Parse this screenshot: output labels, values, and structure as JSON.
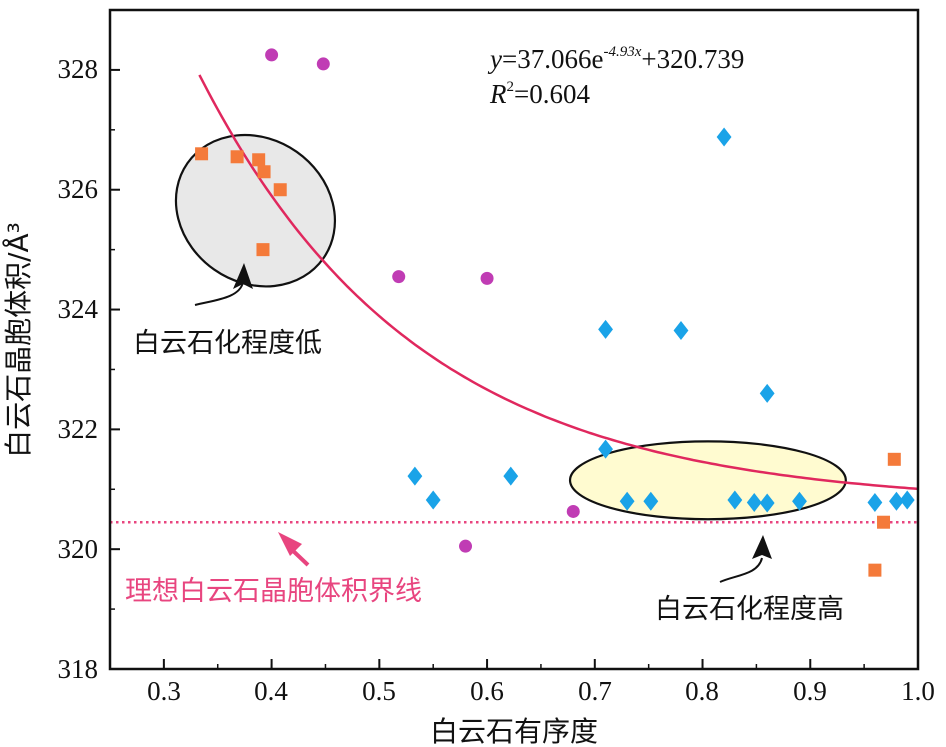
{
  "chart_data": {
    "type": "scatter",
    "xlabel": "白云石有序度",
    "ylabel": "白云石晶胞体积/Å³",
    "xlim": [
      0.25,
      1.0
    ],
    "ylim": [
      318,
      329
    ],
    "xticks": [
      "0.3",
      "0.4",
      "0.5",
      "0.6",
      "0.7",
      "0.8",
      "0.9",
      "1.0"
    ],
    "yticks": [
      "318",
      "320",
      "322",
      "324",
      "326",
      "328"
    ],
    "grid": false,
    "series": [
      {
        "marker": "square",
        "color": "#f47a3a",
        "points": [
          [
            0.335,
            326.6
          ],
          [
            0.368,
            326.55
          ],
          [
            0.388,
            326.5
          ],
          [
            0.393,
            326.3
          ],
          [
            0.408,
            326.0
          ],
          [
            0.392,
            325.0
          ],
          [
            0.978,
            321.5
          ],
          [
            0.968,
            320.45
          ],
          [
            0.96,
            319.65
          ]
        ]
      },
      {
        "marker": "circle",
        "color": "#c03cb4",
        "points": [
          [
            0.4,
            328.25
          ],
          [
            0.448,
            328.1
          ],
          [
            0.518,
            324.55
          ],
          [
            0.6,
            324.52
          ],
          [
            0.68,
            320.63
          ],
          [
            0.58,
            320.05
          ]
        ]
      },
      {
        "marker": "diamond",
        "color": "#1aa3e8",
        "points": [
          [
            0.82,
            326.88
          ],
          [
            0.71,
            323.67
          ],
          [
            0.78,
            323.65
          ],
          [
            0.86,
            322.6
          ],
          [
            0.71,
            321.67
          ],
          [
            0.533,
            321.22
          ],
          [
            0.622,
            321.22
          ],
          [
            0.55,
            320.82
          ],
          [
            0.73,
            320.8
          ],
          [
            0.752,
            320.8
          ],
          [
            0.83,
            320.82
          ],
          [
            0.848,
            320.78
          ],
          [
            0.86,
            320.77
          ],
          [
            0.89,
            320.8
          ],
          [
            0.96,
            320.78
          ],
          [
            0.98,
            320.8
          ],
          [
            0.99,
            320.82
          ]
        ]
      }
    ],
    "fit": {
      "a": 37.066,
      "b": -4.93,
      "c": 320.739,
      "x_range": [
        0.333,
        1.0
      ],
      "color": "#e0285e",
      "equation_text": {
        "y_var": "y",
        "prefix": "=37.066e",
        "exponent": "-4.93x",
        "suffix": "+320.739"
      },
      "r2_text": {
        "r_var": "R",
        "sup": "2",
        "value": "=0.604"
      }
    },
    "reference_line": {
      "y": 320.45,
      "color": "#e8457f",
      "style": "dotted"
    },
    "ellipses": [
      {
        "label": "白云石化程度低",
        "cx": 0.385,
        "cy": 325.65,
        "rx": 0.077,
        "ry": 1.2,
        "rotate_deg": 35,
        "fill": "#e8e8e8"
      },
      {
        "label": "白云石化程度高",
        "cx": 0.805,
        "cy": 321.15,
        "rx": 0.128,
        "ry": 0.65,
        "rotate_deg": 0,
        "fill": "#fffbd0"
      }
    ],
    "annotations": {
      "low": "白云石化程度低",
      "high": "白云石化程度高",
      "ideal_line": "理想白云石晶胞体积界线"
    }
  }
}
